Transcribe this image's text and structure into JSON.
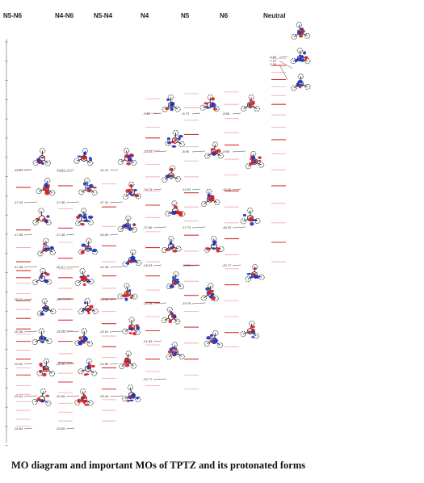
{
  "caption": "MO diagram and important MOs of TPTZ and its protonated forms",
  "colors": {
    "level_red": "#d9302c",
    "level_pink": "#f0a0a8",
    "level_gray": "#b8b8b8",
    "bond": "#111111",
    "atom_blue": "#1c2fb8",
    "atom_red": "#d41f1f",
    "leader": "#444444"
  },
  "columns": [
    {
      "name": "N5-N6",
      "levels": [
        -11.2,
        -12.2,
        -14.6,
        -15.6,
        -16.4,
        -16.9,
        -17.3,
        -17.6,
        -18.2,
        -18.6,
        -19.1,
        -19.6,
        -20.2,
        -20.5,
        -20.9,
        -21.4,
        -21.9,
        -22.4,
        -22.8,
        -23.4,
        -23.9,
        -24.3,
        -24.8,
        -25.3,
        -25.7
      ],
      "highlighted": [
        -12.2,
        -14.6,
        -16.4,
        -16.9,
        -17.3,
        -18.6,
        -19.6,
        -20.2,
        -20.9,
        -21.9,
        -22.8
      ],
      "labels": [
        "-12.67",
        "-17.20",
        "-17.36",
        "-17.48",
        "-20.21",
        "-20.36",
        "-22.42",
        "-23.34",
        "-24.54"
      ]
    },
    {
      "name": "N4-N6",
      "levels": [
        -11.3,
        -12.1,
        -13.4,
        -14.5,
        -15.3,
        -16.2,
        -16.8,
        -17.3,
        -17.9,
        -18.5,
        -19.1,
        -19.7,
        -20.3,
        -20.9,
        -21.6,
        -22.1,
        -22.7,
        -23.2,
        -23.8,
        -24.4,
        -24.9,
        -25.4
      ],
      "highlighted": [
        -12.1,
        -14.5,
        -16.2,
        -17.3,
        -18.5,
        -19.7,
        -20.9,
        -22.1,
        -23.2
      ],
      "labels": [
        "-13.61",
        "-17.36",
        "-17.48",
        "-20.47",
        "-20.71",
        "-21.28",
        "-22.40",
        "-22.68",
        "-23.55"
      ]
    },
    {
      "name": "N5-N4",
      "levels": [
        -12.0,
        -13.3,
        -14.4,
        -15.5,
        -16.4,
        -17.2,
        -17.9,
        -18.5,
        -19.2,
        -19.9,
        -20.6,
        -21.2,
        -21.8,
        -22.4,
        -23.0,
        -23.6,
        -24.2,
        -24.8,
        -25.4
      ],
      "highlighted": [
        -13.3,
        -15.5,
        -17.2,
        -18.5,
        -19.9,
        -21.2,
        -22.4,
        -23.6
      ],
      "labels": [
        "-12.41",
        "-17.31",
        "-20.59",
        "-22.45",
        "-22.65",
        "-23.61",
        "-24.80",
        "-25.42"
      ]
    },
    {
      "name": "N4",
      "levels": [
        -7.2,
        -8.0,
        -8.8,
        -9.4,
        -10.1,
        -10.9,
        -11.6,
        -12.4,
        -13.2,
        -13.9,
        -14.7,
        -15.6,
        -16.4,
        -17.2,
        -18.0,
        -18.7,
        -19.5,
        -20.3,
        -21.1,
        -21.9,
        -22.6,
        -23.4
      ],
      "highlighted": [
        -9.4,
        -13.2,
        -15.6,
        -17.2,
        -18.7,
        -20.3,
        -21.9
      ],
      "labels": [
        "-9.81",
        "-10.03",
        "-14.74",
        "-17.86",
        "-18.23",
        "-20.48",
        "-21.83",
        "-22.77"
      ]
    },
    {
      "name": "N5",
      "levels": [
        -6.9,
        -7.7,
        -8.4,
        -9.2,
        -9.9,
        -10.7,
        -11.6,
        -12.5,
        -13.3,
        -14.1,
        -14.9,
        -15.8,
        -16.6,
        -17.5,
        -18.3,
        -19.2,
        -20.1,
        -21.0,
        -21.9,
        -22.8,
        -23.6
      ],
      "highlighted": [
        -9.2,
        -12.5,
        -14.9,
        -16.6,
        -18.3,
        -20.1,
        -21.9
      ],
      "labels": [
        "-8.73",
        "-8.90",
        "-14.92",
        "-17.72",
        "-18.24",
        "-19.75"
      ]
    },
    {
      "name": "N6",
      "levels": [
        -6.8,
        -7.5,
        -8.3,
        -9.1,
        -9.8,
        -10.6,
        -11.5,
        -12.4,
        -13.3,
        -14.2,
        -15.1,
        -16.0,
        -16.8,
        -17.7,
        -18.6,
        -19.5,
        -20.4,
        -21.2
      ],
      "highlighted": [
        -9.8,
        -12.4,
        -15.1,
        -17.7,
        -20.4
      ],
      "labels": [
        "-8.66",
        "-8.90",
        "-15.06",
        "-18.32",
        "-20.77"
      ]
    },
    {
      "name": "Neutral",
      "levels": [
        -4.9,
        -5.3,
        -5.7,
        -6.1,
        -6.5,
        -7.0,
        -7.5,
        -8.1,
        -8.8,
        -9.5,
        -10.3,
        -11.2,
        -12.1,
        -13.1,
        -14.2,
        -15.3,
        -16.4
      ],
      "highlighted": [
        -5.3,
        -6.1,
        -7.5,
        -9.5,
        -12.1,
        -15.3
      ],
      "labels": [
        "-6.82",
        "-7.10",
        "-7.26"
      ]
    }
  ]
}
